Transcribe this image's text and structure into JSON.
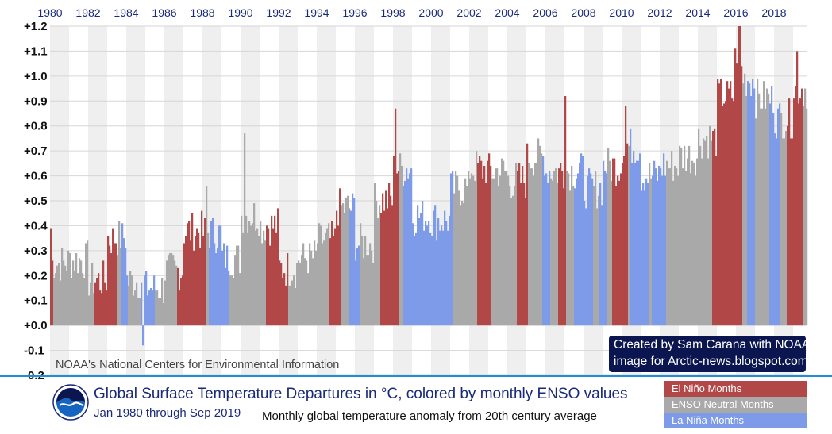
{
  "chart_data": {
    "type": "bar",
    "title": "Global Surface Temperature Departures in °C, colored by monthly ENSO values",
    "subtitle": "Jan 1980 through Sep 2019",
    "caption": "Monthly global temperature anomaly from 20th century average",
    "source": "NOAA's National Centers for Environmental Information",
    "credit": [
      "Created by Sam Carana with NOAA",
      "image for Arctic-news.blogspot.com"
    ],
    "ylim": [
      -0.2,
      1.2
    ],
    "yticks": [
      "+1.2",
      "+1.1",
      "+1.0",
      "+0.9",
      "+0.8",
      "+0.7",
      "+0.6",
      "+0.5",
      "+0.4",
      "+0.3",
      "+0.2",
      "+0.1",
      "+0.0",
      "-0.1",
      "-0.2"
    ],
    "xticks": [
      "1980",
      "1982",
      "1984",
      "1986",
      "1988",
      "1990",
      "1992",
      "1994",
      "1996",
      "1998",
      "2000",
      "2002",
      "2004",
      "2006",
      "2008",
      "2010",
      "2012",
      "2014",
      "2016",
      "2018"
    ],
    "start": "1980-01",
    "months": 477,
    "legend": [
      {
        "key": "elnino",
        "label": "El Niño Months",
        "color": "#b24747"
      },
      {
        "key": "neutral",
        "label": "ENSO Neutral Months",
        "color": "#a9a9a9"
      },
      {
        "key": "lanina",
        "label": "La Niña Months",
        "color": "#7d9be8"
      }
    ],
    "yearly_mean_anomaly": [
      0.25,
      0.26,
      0.18,
      0.35,
      0.18,
      0.15,
      0.22,
      0.38,
      0.37,
      0.27,
      0.44,
      0.4,
      0.23,
      0.27,
      0.34,
      0.47,
      0.33,
      0.5,
      0.63,
      0.44,
      0.42,
      0.55,
      0.63,
      0.62,
      0.58,
      0.67,
      0.62,
      0.62,
      0.55,
      0.64,
      0.72,
      0.6,
      0.64,
      0.68,
      0.75,
      0.92,
      0.99,
      0.91,
      0.83,
      0.95
    ],
    "enso_periods": [
      {
        "phase": "elnino",
        "from": "1980-01",
        "to": "1980-02"
      },
      {
        "phase": "elnino",
        "from": "1982-05",
        "to": "1983-06"
      },
      {
        "phase": "lanina",
        "from": "1983-10",
        "to": "1984-01"
      },
      {
        "phase": "lanina",
        "from": "1984-10",
        "to": "1985-06"
      },
      {
        "phase": "elnino",
        "from": "1986-09",
        "to": "1988-02"
      },
      {
        "phase": "lanina",
        "from": "1988-05",
        "to": "1989-05"
      },
      {
        "phase": "elnino",
        "from": "1991-05",
        "to": "1992-06"
      },
      {
        "phase": "elnino",
        "from": "1994-09",
        "to": "1995-03"
      },
      {
        "phase": "lanina",
        "from": "1995-09",
        "to": "1996-03"
      },
      {
        "phase": "elnino",
        "from": "1997-05",
        "to": "1998-04"
      },
      {
        "phase": "lanina",
        "from": "1998-07",
        "to": "2001-02"
      },
      {
        "phase": "elnino",
        "from": "2002-06",
        "to": "2003-02"
      },
      {
        "phase": "elnino",
        "from": "2004-07",
        "to": "2005-01"
      },
      {
        "phase": "lanina",
        "from": "2005-11",
        "to": "2006-03"
      },
      {
        "phase": "elnino",
        "from": "2006-09",
        "to": "2007-01"
      },
      {
        "phase": "lanina",
        "from": "2007-07",
        "to": "2008-06"
      },
      {
        "phase": "lanina",
        "from": "2008-11",
        "to": "2009-03"
      },
      {
        "phase": "elnino",
        "from": "2009-07",
        "to": "2010-04"
      },
      {
        "phase": "lanina",
        "from": "2010-06",
        "to": "2011-05"
      },
      {
        "phase": "lanina",
        "from": "2011-08",
        "to": "2012-04"
      },
      {
        "phase": "elnino",
        "from": "2014-10",
        "to": "2016-04"
      },
      {
        "phase": "lanina",
        "from": "2016-08",
        "to": "2016-12"
      },
      {
        "phase": "lanina",
        "from": "2017-10",
        "to": "2018-04"
      },
      {
        "phase": "elnino",
        "from": "2018-09",
        "to": "2019-06"
      }
    ],
    "monthly_overrides": {
      "1980-01": 0.39,
      "1984-11": -0.08,
      "1988-03": 0.56,
      "1990-03": 0.77,
      "1998-02": 0.87,
      "2007-01": 0.92,
      "2010-03": 0.88,
      "2015-12": 1.11,
      "2016-01": 1.05,
      "2016-02": 1.22,
      "2016-03": 1.2,
      "2016-04": 1.04,
      "2019-03": 1.1
    },
    "seed": 7
  }
}
